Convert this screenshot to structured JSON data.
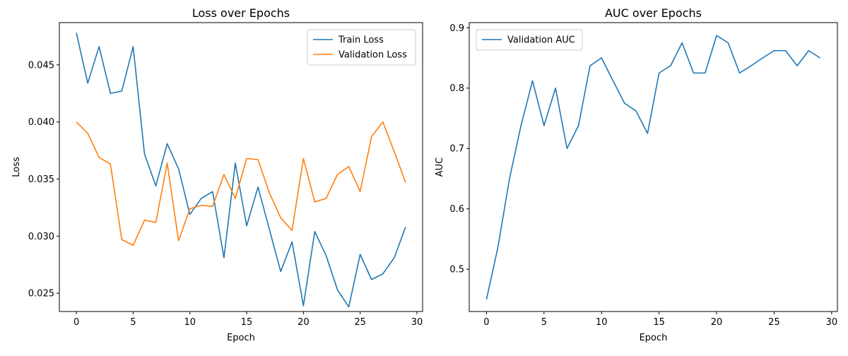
{
  "colors": {
    "blue": "#1f77b4",
    "orange": "#ff7f0e"
  },
  "chart_data": [
    {
      "type": "line",
      "title": "Loss over Epochs",
      "xlabel": "Epoch",
      "ylabel": "Loss",
      "xlim": [
        -1.5,
        30.5
      ],
      "ylim": [
        0.0234,
        0.0487
      ],
      "xticks": [
        0,
        5,
        10,
        15,
        20,
        25,
        30
      ],
      "xtick_labels": [
        "0",
        "5",
        "10",
        "15",
        "20",
        "25",
        "30"
      ],
      "yticks": [
        0.025,
        0.03,
        0.035,
        0.04,
        0.045
      ],
      "ytick_labels": [
        "0.025",
        "0.030",
        "0.035",
        "0.040",
        "0.045"
      ],
      "legend_position": "top-right",
      "grid": false,
      "x": [
        0,
        1,
        2,
        3,
        4,
        5,
        6,
        7,
        8,
        9,
        10,
        11,
        12,
        13,
        14,
        15,
        16,
        17,
        18,
        19,
        20,
        21,
        22,
        23,
        24,
        25,
        26,
        27,
        28,
        29
      ],
      "series": [
        {
          "name": "Train Loss",
          "color": "#1f77b4",
          "values": [
            0.0478,
            0.0434,
            0.0466,
            0.0425,
            0.0427,
            0.0466,
            0.0372,
            0.0344,
            0.0381,
            0.0359,
            0.0319,
            0.0333,
            0.0339,
            0.0281,
            0.0364,
            0.0309,
            0.0343,
            0.0306,
            0.0269,
            0.0295,
            0.0239,
            0.0304,
            0.0283,
            0.0253,
            0.0238,
            0.0284,
            0.0262,
            0.0267,
            0.0281,
            0.0308
          ]
        },
        {
          "name": "Validation Loss",
          "color": "#ff7f0e",
          "values": [
            0.04,
            0.039,
            0.0369,
            0.0363,
            0.0297,
            0.0292,
            0.0314,
            0.0312,
            0.0364,
            0.0296,
            0.0324,
            0.0327,
            0.0326,
            0.0354,
            0.0333,
            0.0368,
            0.0367,
            0.0338,
            0.0316,
            0.0305,
            0.0368,
            0.033,
            0.0333,
            0.0354,
            0.0361,
            0.0339,
            0.0387,
            0.04,
            0.0374,
            0.0347
          ]
        }
      ]
    },
    {
      "type": "line",
      "title": "AUC over Epochs",
      "xlabel": "Epoch",
      "ylabel": "AUC",
      "xlim": [
        -1.5,
        30.5
      ],
      "ylim": [
        0.43,
        0.9085
      ],
      "xticks": [
        0,
        5,
        10,
        15,
        20,
        25,
        30
      ],
      "xtick_labels": [
        "0",
        "5",
        "10",
        "15",
        "20",
        "25",
        "30"
      ],
      "yticks": [
        0.5,
        0.6,
        0.7,
        0.8,
        0.9
      ],
      "ytick_labels": [
        "0.5",
        "0.6",
        "0.7",
        "0.8",
        "0.9"
      ],
      "legend_position": "top-left",
      "grid": false,
      "x": [
        0,
        1,
        2,
        3,
        4,
        5,
        6,
        7,
        8,
        9,
        10,
        11,
        12,
        13,
        14,
        15,
        16,
        17,
        18,
        19,
        20,
        21,
        22,
        23,
        24,
        25,
        26,
        27,
        28,
        29
      ],
      "series": [
        {
          "name": "Validation AUC",
          "color": "#1f77b4",
          "values": [
            0.45,
            0.537,
            0.65,
            0.738,
            0.812,
            0.738,
            0.8,
            0.7,
            0.738,
            0.837,
            0.85,
            0.812,
            0.775,
            0.762,
            0.725,
            0.825,
            0.837,
            0.875,
            0.825,
            0.825,
            0.887,
            0.875,
            0.825,
            0.837,
            0.85,
            0.862,
            0.862,
            0.837,
            0.862,
            0.85
          ]
        }
      ]
    }
  ]
}
